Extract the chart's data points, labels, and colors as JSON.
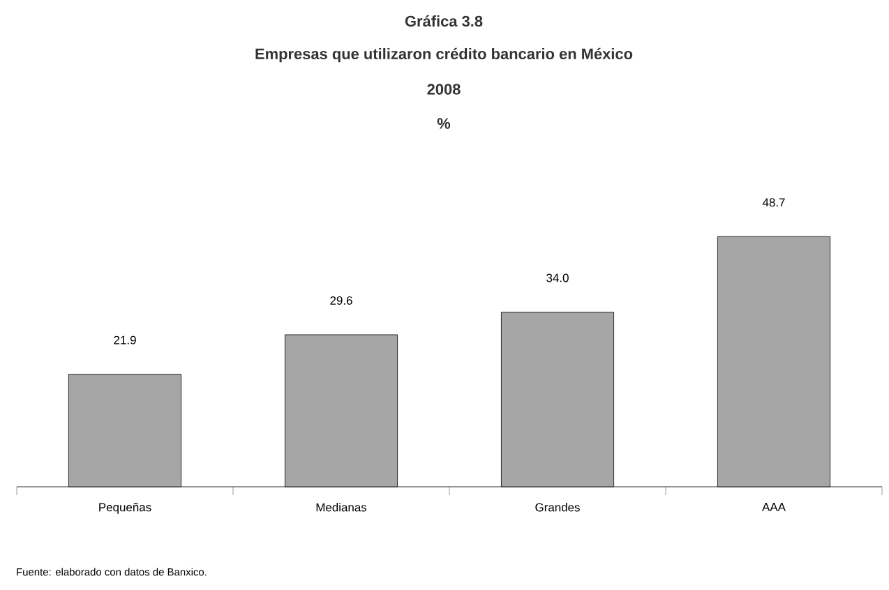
{
  "chart_data": {
    "type": "bar",
    "title": "Gráfica 3.8",
    "subtitle": "Empresas que utilizaron crédito bancario en México",
    "annotations": [
      "2008",
      "%",
      "Fuente: elaborado con datos de Banxico."
    ],
    "categories": [
      "Pequeñas",
      "Medianas",
      "Grandes",
      "AAA"
    ],
    "values": [
      21.9,
      29.6,
      34.0,
      48.7
    ],
    "value_labels": [
      "21.9",
      "29.6",
      "34.0",
      "48.7"
    ],
    "color": "#a6a6a6",
    "grid": false
  }
}
